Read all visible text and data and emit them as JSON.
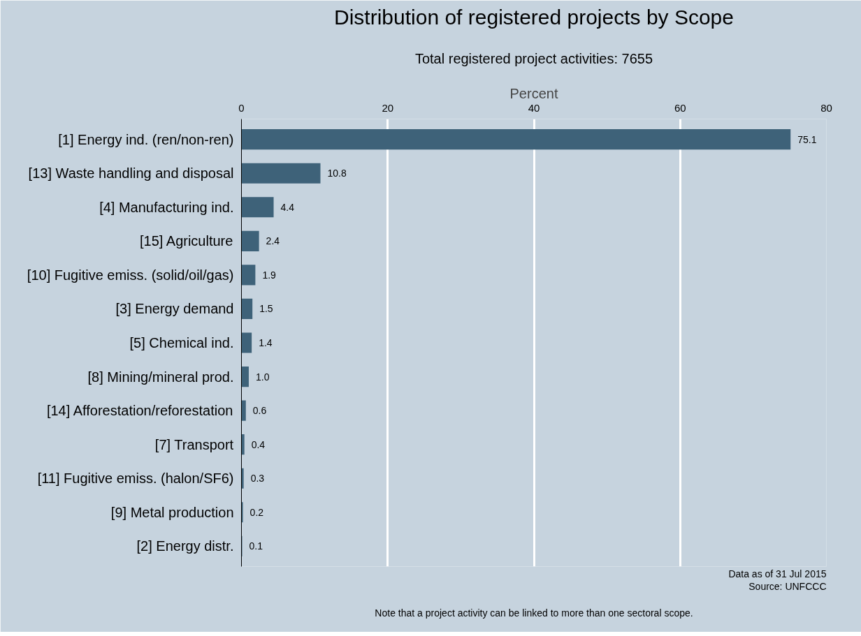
{
  "chart_data": {
    "type": "bar",
    "orientation": "horizontal",
    "title": "Distribution of registered projects by Scope",
    "subtitle": "Total registered project activities: 7655",
    "xlabel": "Percent",
    "categories": [
      "[1] Energy ind. (ren/non-ren)",
      "[13] Waste handling and disposal",
      "[4] Manufacturing ind.",
      "[15] Agriculture",
      "[10] Fugitive emiss. (solid/oil/gas)",
      "[3] Energy demand",
      "[5] Chemical ind.",
      "[8] Mining/mineral prod.",
      "[14] Afforestation/reforestation",
      "[7] Transport",
      "[11] Fugitive emiss. (halon/SF6)",
      "[9] Metal production",
      "[2] Energy distr."
    ],
    "values": [
      75.1,
      10.8,
      4.4,
      2.4,
      1.9,
      1.5,
      1.4,
      1.0,
      0.6,
      0.4,
      0.3,
      0.2,
      0.1
    ],
    "value_labels": [
      "75.1",
      "10.8",
      "4.4",
      "2.4",
      "1.9",
      "1.5",
      "1.4",
      "1.0",
      "0.6",
      "0.4",
      "0.3",
      "0.2",
      "0.1"
    ],
    "color": "#3e6279",
    "xlim": [
      0,
      80
    ],
    "xticks": [
      0,
      20,
      40,
      60,
      80
    ],
    "grid": "x",
    "annotations": [
      "Data as of 31 Jul 2015",
      "Source: UNFCCC",
      "Note that a project activity can be linked to more than one sectoral scope."
    ]
  }
}
